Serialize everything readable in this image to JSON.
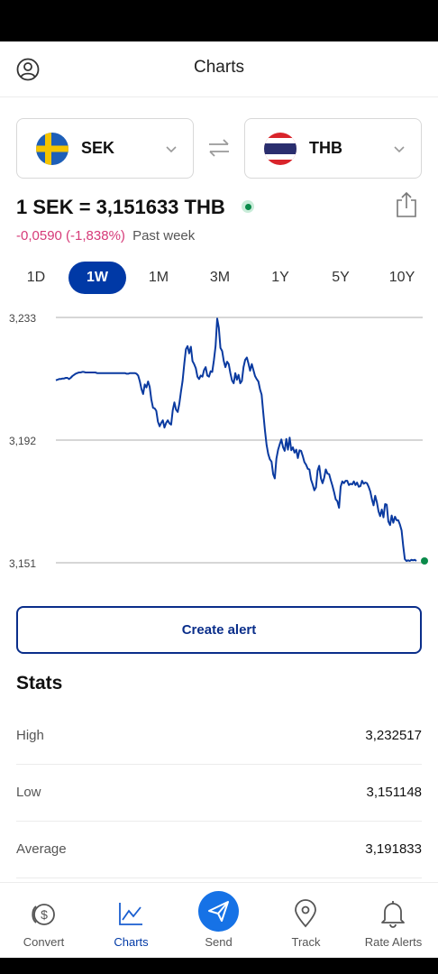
{
  "header": {
    "title": "Charts",
    "profile_icon": "profile-icon"
  },
  "pair": {
    "from": {
      "code": "SEK",
      "flag_icon": "sweden-flag-icon"
    },
    "to": {
      "code": "THB",
      "flag_icon": "thailand-flag-icon"
    },
    "swap_icon": "swap-arrows-icon"
  },
  "rate": {
    "text": "1 SEK = 3,151633 THB",
    "change": "-0,0590 (-1,838%)",
    "period": "Past week",
    "share_icon": "share-icon"
  },
  "ranges": [
    {
      "label": "1D",
      "active": false
    },
    {
      "label": "1W",
      "active": true
    },
    {
      "label": "1M",
      "active": false
    },
    {
      "label": "3M",
      "active": false
    },
    {
      "label": "1Y",
      "active": false
    },
    {
      "label": "5Y",
      "active": false
    },
    {
      "label": "10Y",
      "active": false
    }
  ],
  "chart_data": {
    "type": "line",
    "y_ticks": [
      "3,233",
      "3,192",
      "3,151"
    ],
    "ylim": [
      3.151,
      3.233
    ],
    "grid": true,
    "line_color": "#0a3aa0",
    "series": [
      {
        "values": [
          3.212,
          3.2122,
          3.2124,
          3.2124,
          3.2126,
          3.2126,
          3.2128,
          3.2128,
          3.2124,
          3.2128,
          3.2134,
          3.2138,
          3.2142,
          3.2144,
          3.2146,
          3.2146,
          3.2148,
          3.2148,
          3.2146,
          3.2146,
          3.2146,
          3.2146,
          3.2146,
          3.2146,
          3.2146,
          3.2144,
          3.2144,
          3.2144,
          3.2144,
          3.2144,
          3.2144,
          3.2144,
          3.2144,
          3.2144,
          3.2144,
          3.2144,
          3.2144,
          3.2144,
          3.2144,
          3.2144,
          3.2144,
          3.2144,
          3.2144,
          3.2142,
          3.2142,
          3.2144,
          3.2144,
          3.2144,
          3.2144,
          3.2142,
          3.2136,
          3.2116,
          3.209,
          3.2074,
          3.2106,
          3.2096,
          3.2116,
          3.2098,
          3.2056,
          3.2028,
          3.2026,
          3.2018,
          3.1982,
          3.1966,
          3.1978,
          3.1986,
          3.1962,
          3.1978,
          3.1986,
          3.1976,
          3.1972,
          3.202,
          3.2046,
          3.2022,
          3.2014,
          3.2042,
          3.2082,
          3.2118,
          3.2176,
          3.2224,
          3.2234,
          3.221,
          3.2232,
          3.2184,
          3.2174,
          3.216,
          3.2132,
          3.2124,
          3.2136,
          3.2132,
          3.2154,
          3.2164,
          3.2136,
          3.2132,
          3.215,
          3.2148,
          3.2186,
          3.2234,
          3.2326,
          3.2296,
          3.2228,
          3.2218,
          3.2184,
          3.2164,
          3.2182,
          3.2174,
          3.2144,
          3.212,
          3.211,
          3.2144,
          3.2122,
          3.2138,
          3.211,
          3.2118,
          3.2164,
          3.2188,
          3.2196,
          3.2176,
          3.2152,
          3.2174,
          3.2154,
          3.2134,
          3.2124,
          3.2116,
          3.209,
          3.2072,
          3.2012,
          3.1952,
          3.1904,
          3.1874,
          3.1856,
          3.1848,
          3.1806,
          3.1792,
          3.1858,
          3.1888,
          3.1906,
          3.1922,
          3.1896,
          3.1884,
          3.1924,
          3.1888,
          3.1928,
          3.1886,
          3.1896,
          3.1878,
          3.1888,
          3.186,
          3.1886,
          3.1884,
          3.1866,
          3.1846,
          3.1838,
          3.1824,
          3.1822,
          3.1788,
          3.1772,
          3.1752,
          3.1762,
          3.1818,
          3.1834,
          3.1792,
          3.1776,
          3.1794,
          3.1822,
          3.1808,
          3.1806,
          3.1786,
          3.1768,
          3.1746,
          3.1722,
          3.1716,
          3.1694,
          3.1764,
          3.1782,
          3.1776,
          3.1784,
          3.1784,
          3.177,
          3.1774,
          3.1772,
          3.1782,
          3.177,
          3.1778,
          3.1764,
          3.1766,
          3.1784,
          3.1774,
          3.1778,
          3.1776,
          3.1764,
          3.1748,
          3.1722,
          3.1702,
          3.1734,
          3.1712,
          3.1682,
          3.1666,
          3.1688,
          3.1662,
          3.1706,
          3.1704,
          3.1648,
          3.1636,
          3.1668,
          3.1644,
          3.1664,
          3.1652,
          3.1652,
          3.1638,
          3.1618,
          3.1566,
          3.1522,
          3.1516,
          3.1518,
          3.1516,
          3.152,
          3.1518,
          3.152,
          3.1516
        ]
      }
    ]
  },
  "create_alert": {
    "label": "Create alert"
  },
  "stats": {
    "title": "Stats",
    "rows": [
      {
        "label": "High",
        "value": "3,232517"
      },
      {
        "label": "Low",
        "value": "3,151148"
      },
      {
        "label": "Average",
        "value": "3,191833"
      }
    ]
  },
  "tabs": [
    {
      "label": "Convert",
      "icon": "coins-icon",
      "active": false
    },
    {
      "label": "Charts",
      "icon": "chart-icon",
      "active": true
    },
    {
      "label": "Send",
      "icon": "send-icon",
      "active": false
    },
    {
      "label": "Track",
      "icon": "location-pin-icon",
      "active": false
    },
    {
      "label": "Rate Alerts",
      "icon": "bell-icon",
      "active": false
    }
  ]
}
